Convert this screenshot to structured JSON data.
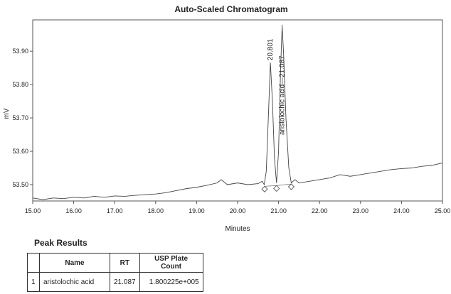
{
  "chart_data": {
    "type": "line",
    "title": "Auto-Scaled Chromatogram",
    "xlabel": "Minutes",
    "ylabel": "mV",
    "xlim": [
      15.0,
      25.0
    ],
    "ylim": [
      53.451,
      53.994
    ],
    "xticks": [
      "15.00",
      "16.00",
      "17.00",
      "18.00",
      "19.00",
      "20.00",
      "21.00",
      "22.00",
      "23.00",
      "24.00",
      "25.00"
    ],
    "yticks": [
      "53.50",
      "53.60",
      "53.70",
      "53.80",
      "53.90"
    ],
    "grid": false,
    "series": [
      {
        "x": [
          15.0,
          15.25,
          15.5,
          15.75,
          16.0,
          16.25,
          16.5,
          16.75,
          17.0,
          17.25,
          17.5,
          17.75,
          18.0,
          18.25,
          18.5,
          18.75,
          19.0,
          19.25,
          19.5,
          19.6,
          19.75,
          20.0,
          20.25,
          20.5,
          20.6,
          20.65,
          20.7,
          20.75,
          20.8,
          20.85,
          20.9,
          20.95,
          21.0,
          21.05,
          21.087,
          21.12,
          21.18,
          21.25,
          21.31,
          21.4,
          21.5,
          21.75,
          22.0,
          22.25,
          22.5,
          22.75,
          23.0,
          23.25,
          23.5,
          23.75,
          24.0,
          24.25,
          24.5,
          24.75,
          25.0
        ],
        "y": [
          53.46,
          53.455,
          53.46,
          53.458,
          53.462,
          53.46,
          53.465,
          53.462,
          53.466,
          53.465,
          53.468,
          53.47,
          53.472,
          53.476,
          53.482,
          53.488,
          53.492,
          53.498,
          53.505,
          53.515,
          53.5,
          53.505,
          53.5,
          53.503,
          53.51,
          53.5,
          53.54,
          53.7,
          53.866,
          53.75,
          53.58,
          53.505,
          53.6,
          53.85,
          53.975,
          53.9,
          53.7,
          53.55,
          53.505,
          53.515,
          53.505,
          53.51,
          53.515,
          53.52,
          53.53,
          53.525,
          53.53,
          53.535,
          53.54,
          53.545,
          53.548,
          53.55,
          53.555,
          53.558,
          53.565
        ]
      }
    ],
    "baseline_markers": [
      {
        "x": 20.66,
        "y": 53.495
      },
      {
        "x": 20.95,
        "y": 53.497
      },
      {
        "x": 21.31,
        "y": 53.502
      }
    ],
    "annotations": [
      {
        "text": "20.801",
        "x": 20.801,
        "y": 53.866
      },
      {
        "text": "aristolochic acid—21.087",
        "x": 21.087,
        "y": 53.975
      }
    ]
  },
  "peak_results": {
    "title": "Peak Results",
    "headers": [
      "",
      "Name",
      "RT",
      "USP Plate Count"
    ],
    "rows": [
      [
        "1",
        "aristolochic acid",
        "21.087",
        "1.800225e+005"
      ]
    ]
  }
}
